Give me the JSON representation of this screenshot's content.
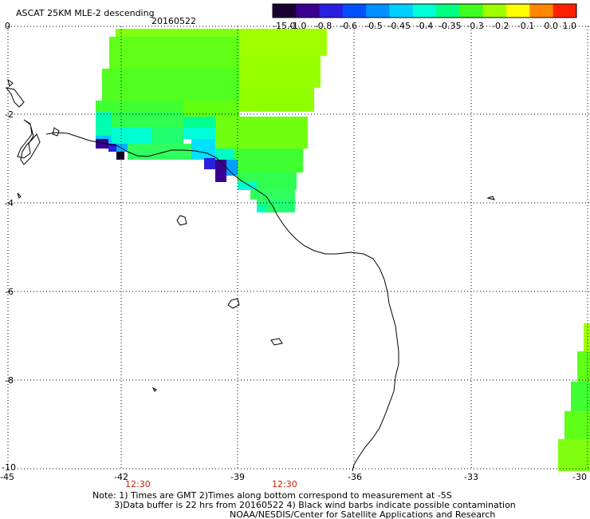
{
  "title": "ASCAT 25KM MLE-2 descending",
  "date": "20160522",
  "colorbar": {
    "labels": [
      "-15.0",
      "-1.0",
      "-0.8",
      "-0.6",
      "-0.5",
      "-0.45",
      "-0.4",
      "-0.35",
      "-0.3",
      "-0.2",
      "-0.1",
      "0.0",
      "1.0"
    ],
    "colors": [
      "#1a0030",
      "#3a0090",
      "#2a20e0",
      "#0050ff",
      "#0090ff",
      "#00d0ff",
      "#00ffd8",
      "#00ff80",
      "#40ff20",
      "#a0ff00",
      "#ffff00",
      "#ff8800",
      "#ff2000"
    ]
  },
  "axes": {
    "lat_labels": [
      "0",
      "-2",
      "-4",
      "-6",
      "-8",
      "-10"
    ],
    "lon_labels": [
      "-45",
      "-42",
      "-39",
      "-36",
      "-33",
      "-30"
    ],
    "time_labels": [
      "12:30",
      "12:30"
    ]
  },
  "notes": {
    "line1": "Note: 1) Times are GMT 2)Times along bottom correspond to measurement at -5S",
    "line2": "3)Data buffer is 22 hrs from 20160522 4) Black wind barbs indicate possible contamination",
    "line3": "NOAA/NESDIS/Center for Satellite Applications and Research"
  }
}
